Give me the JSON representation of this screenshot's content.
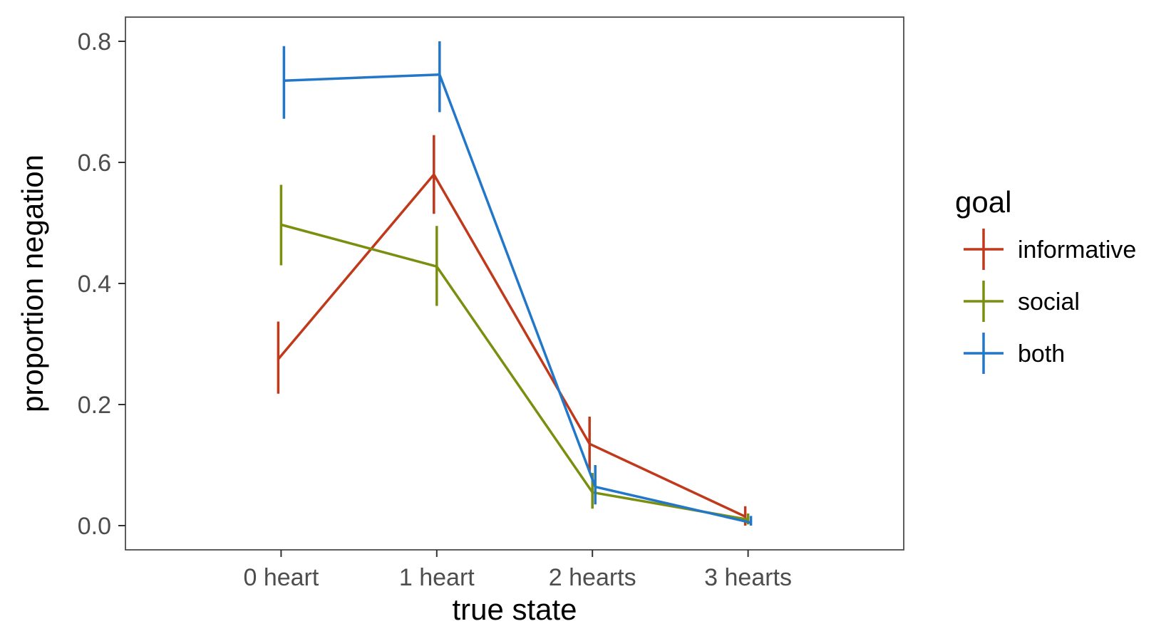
{
  "chart_data": {
    "type": "line",
    "xlabel": "true state",
    "ylabel": "proportion negation",
    "categories": [
      "0 heart",
      "1 heart",
      "2 hearts",
      "3 hearts"
    ],
    "ylim": [
      -0.04,
      0.84
    ],
    "yticks": [
      0.0,
      0.2,
      0.4,
      0.6,
      0.8
    ],
    "ytick_labels": [
      "0.0",
      "0.2",
      "0.4",
      "0.6",
      "0.8"
    ],
    "grid": false,
    "legend": {
      "title": "goal",
      "placement": "right"
    },
    "series": [
      {
        "name": "informative",
        "color": "#C0391B",
        "values": [
          0.275,
          0.58,
          0.135,
          0.015
        ],
        "err_low": [
          0.218,
          0.515,
          0.09,
          0.0
        ],
        "err_high": [
          0.337,
          0.645,
          0.18,
          0.032
        ]
      },
      {
        "name": "social",
        "color": "#7A8F0F",
        "values": [
          0.497,
          0.428,
          0.055,
          0.01
        ],
        "err_low": [
          0.43,
          0.363,
          0.028,
          0.002
        ],
        "err_high": [
          0.563,
          0.495,
          0.087,
          0.02
        ]
      },
      {
        "name": "both",
        "color": "#2277C9",
        "values": [
          0.735,
          0.745,
          0.064,
          0.005
        ],
        "err_low": [
          0.672,
          0.683,
          0.035,
          0.0
        ],
        "err_high": [
          0.792,
          0.8,
          0.1,
          0.016
        ]
      }
    ]
  }
}
